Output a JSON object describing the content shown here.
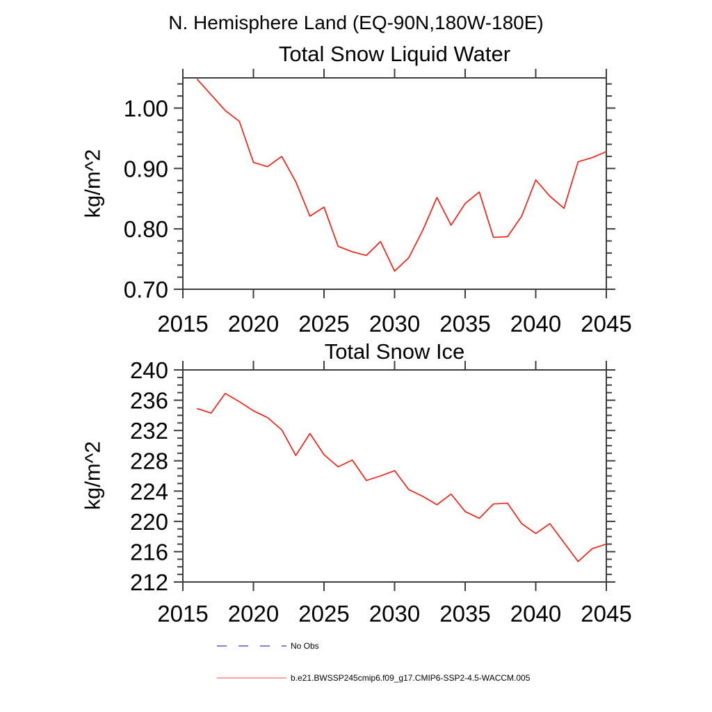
{
  "page": {
    "main_title": "N. Hemisphere Land (EQ-90N,180W-180E)"
  },
  "chart_data": [
    {
      "type": "line",
      "title": "Total Snow Liquid Water",
      "ylabel": "kg/m^2",
      "xlim": [
        2015,
        2045
      ],
      "ylim": [
        0.7,
        1.05
      ],
      "grid": false,
      "xticks": [
        2015,
        2020,
        2025,
        2030,
        2035,
        2040,
        2045
      ],
      "xtick_labels": [
        "2015",
        "2020",
        "2025",
        "2030",
        "2035",
        "2040",
        "2045"
      ],
      "yticks": [
        0.7,
        0.8,
        0.9,
        1.0
      ],
      "ytick_labels": [
        "0.70",
        "0.80",
        "0.90",
        "1.00"
      ],
      "yminor_step": 0.02,
      "series": [
        {
          "name": "b.e21.BWSSP245cmip6.f09_g17.CMIP6-SSP2-4.5-WACCM.005",
          "color": "#f32015",
          "x": [
            2016,
            2017,
            2018,
            2019,
            2020,
            2021,
            2022,
            2023,
            2024,
            2025,
            2026,
            2027,
            2028,
            2029,
            2030,
            2031,
            2032,
            2033,
            2034,
            2035,
            2036,
            2037,
            2038,
            2039,
            2040,
            2041,
            2042,
            2043,
            2044,
            2045
          ],
          "values": [
            1.048,
            1.022,
            0.996,
            0.978,
            0.91,
            0.903,
            0.92,
            0.878,
            0.821,
            0.836,
            0.771,
            0.762,
            0.756,
            0.779,
            0.73,
            0.752,
            0.798,
            0.852,
            0.806,
            0.842,
            0.861,
            0.786,
            0.787,
            0.821,
            0.881,
            0.854,
            0.834,
            0.911,
            0.918,
            0.928
          ]
        }
      ]
    },
    {
      "type": "line",
      "title": "Total Snow Ice",
      "ylabel": "kg/m^2",
      "xlim": [
        2015,
        2045
      ],
      "ylim": [
        212,
        240
      ],
      "grid": false,
      "xticks": [
        2015,
        2020,
        2025,
        2030,
        2035,
        2040,
        2045
      ],
      "xtick_labels": [
        "2015",
        "2020",
        "2025",
        "2030",
        "2035",
        "2040",
        "2045"
      ],
      "yticks": [
        212,
        216,
        220,
        224,
        228,
        232,
        236,
        240
      ],
      "ytick_labels": [
        "212",
        "216",
        "220",
        "224",
        "228",
        "232",
        "236",
        "240"
      ],
      "yminor_step": 1,
      "series": [
        {
          "name": "b.e21.BWSSP245cmip6.f09_g17.CMIP6-SSP2-4.5-WACCM.005",
          "color": "#f32015",
          "x": [
            2016,
            2017,
            2018,
            2019,
            2020,
            2021,
            2022,
            2023,
            2024,
            2025,
            2026,
            2027,
            2028,
            2029,
            2030,
            2031,
            2032,
            2033,
            2034,
            2035,
            2036,
            2037,
            2038,
            2039,
            2040,
            2041,
            2042,
            2043,
            2044,
            2045
          ],
          "values": [
            234.9,
            234.3,
            236.9,
            235.8,
            234.6,
            233.7,
            232.1,
            228.7,
            231.6,
            228.8,
            227.2,
            228.1,
            225.4,
            226.0,
            226.7,
            224.2,
            223.3,
            222.2,
            223.6,
            221.3,
            220.4,
            222.3,
            222.4,
            219.7,
            218.4,
            219.7,
            217.2,
            214.7,
            216.4,
            217.0
          ]
        }
      ]
    }
  ],
  "legend": {
    "items": [
      {
        "label": "No Obs",
        "color": "#5656cc",
        "style": "dashed"
      },
      {
        "label": "b.e21.BWSSP245cmip6.f09_g17.CMIP6-SSP2-4.5-WACCM.005",
        "color": "#f5837a",
        "style": "solid"
      }
    ]
  }
}
